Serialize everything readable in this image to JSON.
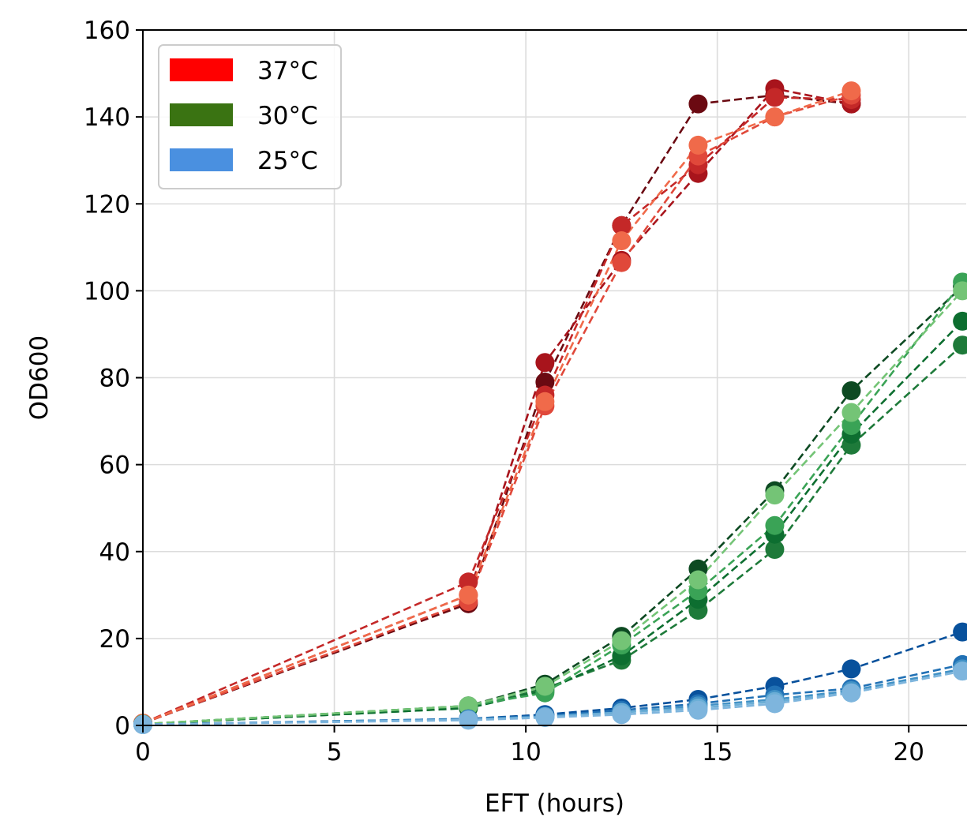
{
  "chart_data": {
    "type": "line",
    "title": "",
    "xlabel": "EFT (hours)",
    "ylabel": "OD600",
    "xlim": [
      0,
      21.5
    ],
    "ylim": [
      0,
      160
    ],
    "xticks": [
      0,
      5,
      10,
      15,
      20
    ],
    "yticks": [
      0,
      20,
      40,
      60,
      80,
      100,
      120,
      140,
      160
    ],
    "xtick_labels": [
      "0",
      "5",
      "10",
      "15",
      "20"
    ],
    "ytick_labels": [
      "0",
      "20",
      "40",
      "60",
      "80",
      "100",
      "120",
      "140",
      "160"
    ],
    "grid": true,
    "line_style": "dashed",
    "markers": "circle",
    "legend": {
      "placement": "top-left",
      "entries": [
        {
          "label": "37°C",
          "color": "#ff0000"
        },
        {
          "label": "30°C",
          "color": "#3a7312"
        },
        {
          "label": "25°C",
          "color": "#4a90e0"
        }
      ]
    },
    "groups": [
      {
        "legend_label": "37°C",
        "series": [
          {
            "color": "#6b0a12",
            "x": [
              0,
              8.5,
              10.5,
              12.5,
              14.5,
              16.5,
              18.5
            ],
            "y": [
              0.5,
              28,
              79,
              115,
              143,
              145,
              143
            ]
          },
          {
            "color": "#a8141c",
            "x": [
              0,
              8.5,
              10.5,
              12.5,
              14.5,
              16.5,
              18.5
            ],
            "y": [
              0.5,
              30,
              83.5,
              107,
              127,
              146.5,
              143
            ]
          },
          {
            "color": "#c42828",
            "x": [
              0,
              8.5,
              10.5,
              12.5,
              14.5,
              16.5,
              18.5
            ],
            "y": [
              0.5,
              33,
              76,
              115,
              129,
              144.5,
              144
            ]
          },
          {
            "color": "#e0483a",
            "x": [
              0,
              8.5,
              10.5,
              12.5,
              14.5,
              16.5,
              18.5
            ],
            "y": [
              0.5,
              28.5,
              73.5,
              106.5,
              131,
              140,
              145
            ]
          },
          {
            "color": "#f06a4a",
            "x": [
              0,
              8.5,
              10.5,
              12.5,
              14.5,
              16.5,
              18.5
            ],
            "y": [
              0.5,
              30,
              74.5,
              111.5,
              133.5,
              140,
              146
            ]
          }
        ]
      },
      {
        "legend_label": "30°C",
        "series": [
          {
            "color": "#0d4a22",
            "x": [
              0,
              8.5,
              10.5,
              12.5,
              14.5,
              16.5,
              18.5,
              21.4
            ],
            "y": [
              0.3,
              4.5,
              9.5,
              20.5,
              36,
              54,
              77,
              101
            ]
          },
          {
            "color": "#1e7a3a",
            "x": [
              0,
              8.5,
              10.5,
              12.5,
              14.5,
              16.5,
              18.5,
              21.4
            ],
            "y": [
              0.3,
              4,
              8.5,
              15,
              26.5,
              40.5,
              64.5,
              87.5
            ]
          },
          {
            "color": "#0d6e30",
            "x": [
              0,
              8.5,
              10.5,
              12.5,
              14.5,
              16.5,
              18.5,
              21.4
            ],
            "y": [
              0.3,
              4,
              8,
              16,
              29,
              44,
              67,
              93
            ]
          },
          {
            "color": "#3aa356",
            "x": [
              0,
              8.5,
              10.5,
              12.5,
              14.5,
              16.5,
              18.5,
              21.4
            ],
            "y": [
              0.3,
              4.5,
              7.5,
              18.5,
              31,
              46,
              69,
              102
            ]
          },
          {
            "color": "#74c476",
            "x": [
              0,
              8.5,
              10.5,
              12.5,
              14.5,
              16.5,
              18.5,
              21.4
            ],
            "y": [
              0.3,
              4.5,
              9,
              19.5,
              33.5,
              53,
              72,
              100
            ]
          }
        ]
      },
      {
        "legend_label": "25°C",
        "series": [
          {
            "color": "#08519c",
            "x": [
              0,
              8.5,
              10.5,
              12.5,
              14.5,
              16.5,
              18.5,
              21.4
            ],
            "y": [
              0.2,
              1.5,
              2.5,
              4,
              6,
              9,
              13,
              21.5
            ]
          },
          {
            "color": "#2171b5",
            "x": [
              0,
              8.5,
              10.5,
              12.5,
              14.5,
              16.5,
              18.5,
              21.4
            ],
            "y": [
              0.2,
              1.5,
              2.2,
              3.5,
              5,
              7,
              8.5,
              14
            ]
          },
          {
            "color": "#4292c6",
            "x": [
              0,
              8.5,
              10.5,
              12.5,
              14.5,
              16.5,
              18.5,
              21.4
            ],
            "y": [
              0.2,
              1.4,
              2,
              3,
              4.5,
              6,
              8,
              13
            ]
          },
          {
            "color": "#6baed6",
            "x": [
              0,
              8.5,
              10.5,
              12.5,
              14.5,
              16.5,
              18.5,
              21.4
            ],
            "y": [
              0.2,
              1.3,
              2,
              3,
              4,
              5.5,
              7.5,
              12.5
            ]
          },
          {
            "color": "#7eb5dd",
            "x": [
              0,
              8.5,
              10.5,
              12.5,
              14.5,
              16.5,
              18.5,
              21.4
            ],
            "y": [
              0.2,
              1.2,
              1.8,
              2.5,
              3.5,
              5,
              7.5,
              12.5
            ]
          }
        ]
      }
    ]
  }
}
